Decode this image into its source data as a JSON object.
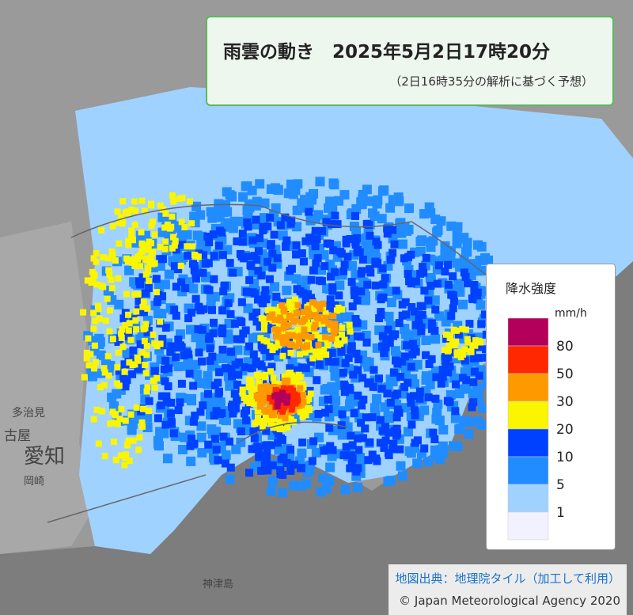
{
  "header": {
    "title": "雨雲の動き　2025年5月2日17時20分",
    "subtitle": "（2日16時35分の解析に基づく予想）"
  },
  "legend": {
    "title": "降水強度",
    "unit": "mm/h",
    "colors": [
      "#b4005a",
      "#ff2800",
      "#ff9900",
      "#faf500",
      "#0041ff",
      "#218cff",
      "#a0d2ff",
      "#f2f2ff"
    ],
    "labels": [
      80,
      50,
      30,
      20,
      10,
      5,
      1
    ]
  },
  "places": [
    "愛知",
    "岡崎",
    "古屋",
    "多治見",
    "神津島"
  ],
  "attribution": {
    "source": "地図出典：地理院タイル（加工して利用）",
    "copyright": "© Japan Meteorological Agency 2020"
  }
}
